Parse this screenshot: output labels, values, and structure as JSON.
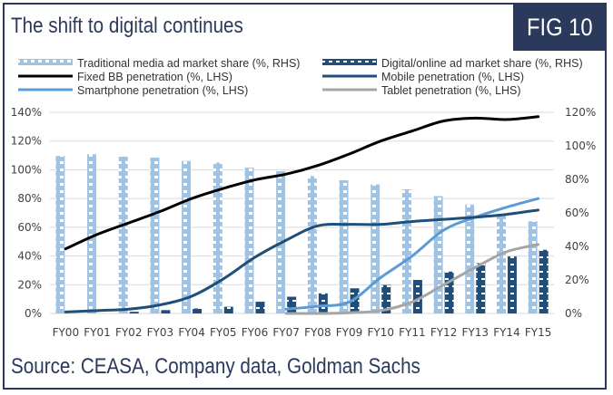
{
  "header": {
    "title": "The shift to digital continues",
    "fig_label": "FIG 10"
  },
  "footer": {
    "source": "Source: CEASA, Company data, Goldman Sachs"
  },
  "colors": {
    "frame": "#2b3a5c",
    "traditional": "#9dc3e6",
    "digital": "#1f4e79",
    "fixed_bb": "#000000",
    "mobile": "#1f4e79",
    "smartphone": "#5b9bd5",
    "tablet": "#a5a5a5",
    "grid": "#d9d9d9"
  },
  "chart_data": {
    "type": "bar+line",
    "title": "The shift to digital continues",
    "categories": [
      "FY00",
      "FY01",
      "FY02",
      "FY03",
      "FY04",
      "FY05",
      "FY06",
      "FY07",
      "FY08",
      "FY09",
      "FY10",
      "FY11",
      "FY12",
      "FY13",
      "FY14",
      "FY15"
    ],
    "left_axis": {
      "ylim": [
        0,
        140
      ],
      "ticks": [
        "0%",
        "20%",
        "40%",
        "60%",
        "80%",
        "100%",
        "120%",
        "140%"
      ],
      "tick_values": [
        0,
        20,
        40,
        60,
        80,
        100,
        120,
        140
      ]
    },
    "right_axis": {
      "ylim": [
        0,
        120
      ],
      "ticks": [
        "0%",
        "20%",
        "40%",
        "60%",
        "80%",
        "100%",
        "120%"
      ],
      "tick_values": [
        0,
        20,
        40,
        60,
        80,
        100,
        120
      ]
    },
    "grid": true,
    "legend_position": "top",
    "series": [
      {
        "name": "Traditional media ad market share (%, RHS)",
        "kind": "bar",
        "axis": "right",
        "color_key": "traditional",
        "values": [
          94,
          95,
          93.5,
          93,
          91,
          90,
          87,
          85,
          82,
          79.5,
          77,
          74,
          70,
          65,
          59,
          55
        ]
      },
      {
        "name": "Digital/online ad market share (%, RHS)",
        "kind": "bar",
        "axis": "right",
        "color_key": "digital",
        "values": [
          0,
          0,
          1,
          2,
          3,
          4,
          7,
          10,
          12,
          15,
          17,
          20,
          25,
          30,
          34,
          38
        ]
      },
      {
        "name": "Fixed BB penetration (%, LHS)",
        "kind": "line",
        "axis": "left",
        "color_key": "fixed_bb",
        "values": [
          45,
          55,
          63,
          71,
          80,
          87,
          93,
          97,
          103,
          111,
          120,
          127,
          134,
          136,
          135,
          137
        ]
      },
      {
        "name": "Mobile penetration (%, LHS)",
        "kind": "line",
        "axis": "left",
        "color_key": "mobile",
        "values": [
          1,
          2,
          3,
          6,
          12,
          24,
          39,
          51,
          61,
          62,
          62,
          64,
          65.5,
          67,
          69,
          72
        ]
      },
      {
        "name": "Smartphone penetration (%, LHS)",
        "kind": "line",
        "axis": "left",
        "color_key": "smartphone",
        "values": [
          null,
          null,
          null,
          null,
          null,
          null,
          null,
          3,
          5,
          8,
          25,
          40,
          58,
          67,
          74,
          80
        ]
      },
      {
        "name": "Tablet penetration (%, LHS)",
        "kind": "line",
        "axis": "left",
        "color_key": "tablet",
        "values": [
          null,
          null,
          null,
          null,
          null,
          null,
          null,
          0,
          0,
          0.5,
          2,
          8,
          20,
          32,
          43,
          48
        ]
      }
    ]
  }
}
